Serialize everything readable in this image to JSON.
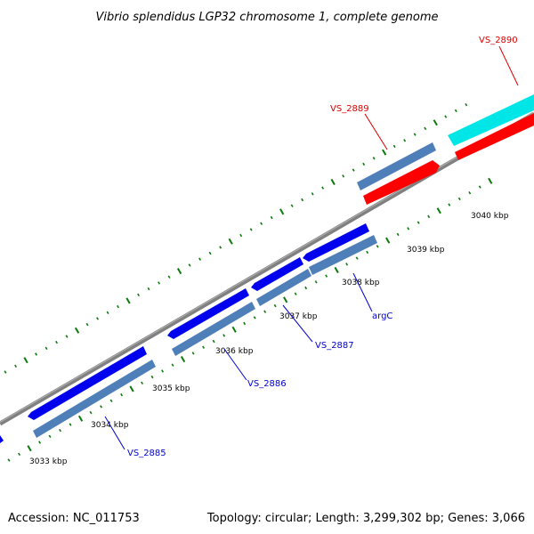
{
  "title": "Vibrio splendidus LGP32 chromosome 1, complete genome",
  "accession": "Accession: NC_011753",
  "topology": "Topology: circular; Length: 3,299,302 bp; Genes: 3,066",
  "colors": {
    "backbone": "#808080",
    "forward_cds": "#0000ee",
    "forward_gene": "#4f7fb8",
    "reverse_cds": "#ff0000",
    "reverse_gene": "#4f7fb8",
    "rna": "#00e6e6",
    "tick": "#0b7a0b",
    "blue_label": "#0000cc",
    "red_label": "#dd0000"
  },
  "kbp_labels": [
    "3033 kbp",
    "3034 kbp",
    "3035 kbp",
    "3036 kbp",
    "3037 kbp",
    "3038 kbp",
    "3039 kbp",
    "3040 kbp"
  ],
  "gene_labels": {
    "vs_2885": "VS_2885",
    "vs_2886": "VS_2886",
    "vs_2887": "VS_2887",
    "argc": "argC",
    "vs_2889": "VS_2889",
    "vs_2890": "VS_2890"
  }
}
